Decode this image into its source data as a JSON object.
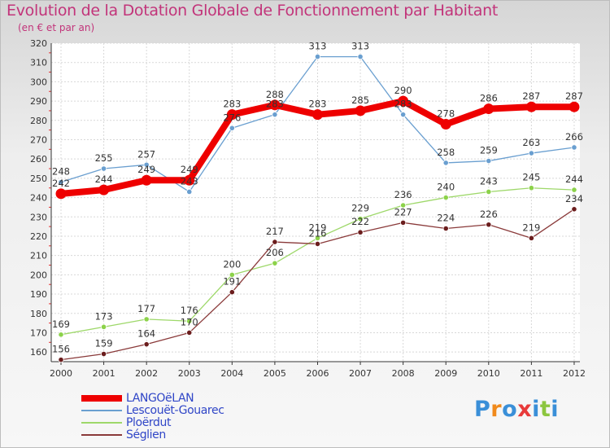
{
  "title": "Evolution de la Dotation Globale de Fonctionnement par Habitant",
  "subtitle": "(en € et par an)",
  "logo": {
    "text": "Proxiti",
    "letters": [
      {
        "ch": "P",
        "color": "#3a8fd8"
      },
      {
        "ch": "r",
        "color": "#f08a1c"
      },
      {
        "ch": "o",
        "color": "#3a8fd8"
      },
      {
        "ch": "x",
        "color": "#e83a3a"
      },
      {
        "ch": "i",
        "color": "#3a8fd8"
      },
      {
        "ch": "t",
        "color": "#8cc63f"
      },
      {
        "ch": "i",
        "color": "#3a8fd8"
      }
    ]
  },
  "chart_data": {
    "type": "line",
    "title": "Evolution de la Dotation Globale de Fonctionnement par Habitant",
    "subtitle": "(en € et par an)",
    "x": [
      "2000",
      "2001",
      "2002",
      "2003",
      "2004",
      "2005",
      "2006",
      "2007",
      "2008",
      "2009",
      "2010",
      "2011",
      "2012"
    ],
    "ylim": [
      155,
      320
    ],
    "yticks": [
      160,
      170,
      180,
      190,
      200,
      210,
      220,
      230,
      240,
      250,
      260,
      270,
      280,
      290,
      300,
      310,
      320
    ],
    "grid": true,
    "legend_position": "bottom-left",
    "series": [
      {
        "name": "Lescouët-Gouarec",
        "color": "#6a9fd0",
        "width": 1.3,
        "marker": "#6a9fd0",
        "values": [
          248,
          255,
          257,
          243,
          276,
          283,
          313,
          313,
          283,
          258,
          259,
          263,
          266
        ],
        "labels": [
          "248",
          "255",
          "257",
          "243",
          "276",
          "283",
          "313",
          "313",
          "283",
          "258",
          "259",
          "263",
          "266"
        ]
      },
      {
        "name": "Ploërdut",
        "color": "#9ed86a",
        "width": 1.3,
        "marker": "#8cd24a",
        "values": [
          169,
          173,
          177,
          176,
          200,
          206,
          219,
          229,
          236,
          240,
          243,
          245,
          244
        ],
        "labels": [
          "169",
          "173",
          "177",
          "176",
          "200",
          "206",
          "219",
          "229",
          "236",
          "240",
          "243",
          "245",
          "244"
        ]
      },
      {
        "name": "Séglien",
        "color": "#8a3a3a",
        "width": 1.3,
        "marker": "#6b1d1d",
        "values": [
          156,
          159,
          164,
          170,
          191,
          217,
          216,
          222,
          227,
          224,
          226,
          219,
          234
        ],
        "labels": [
          "156",
          "159",
          "164",
          "170",
          "191",
          "217",
          "216",
          "222",
          "227",
          "224",
          "226",
          "219",
          "234"
        ]
      },
      {
        "name": "LANGOëLAN",
        "color": "#ee0000",
        "width": 8,
        "marker": "#ee0000",
        "values": [
          242,
          244,
          249,
          249,
          283,
          288,
          283,
          285,
          290,
          278,
          286,
          287,
          287
        ],
        "labels": [
          "242",
          "244",
          "249",
          "249",
          "283",
          "288",
          "283",
          "285",
          "290",
          "278",
          "286",
          "287",
          "287"
        ]
      }
    ],
    "legend": [
      {
        "name": "LANGOëLAN",
        "color": "#ee0000",
        "thickness": 8
      },
      {
        "name": "Lescouët-Gouarec",
        "color": "#6a9fd0",
        "thickness": 2
      },
      {
        "name": "Ploërdut",
        "color": "#9ed86a",
        "thickness": 2
      },
      {
        "name": "Séglien",
        "color": "#8a3a3a",
        "thickness": 2
      }
    ]
  }
}
